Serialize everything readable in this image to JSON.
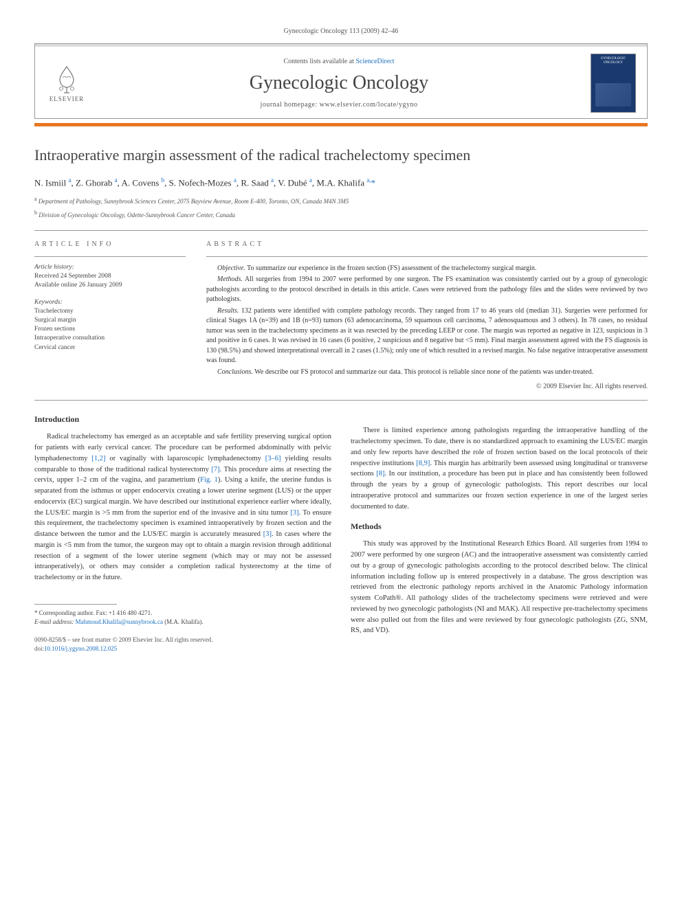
{
  "running_head": "Gynecologic Oncology 113 (2009) 42–46",
  "header": {
    "contents_prefix": "Contents lists available at ",
    "contents_link": "ScienceDirect",
    "journal_title": "Gynecologic Oncology",
    "homepage_label": "journal homepage: ",
    "homepage_url": "www.elsevier.com/locate/ygyno",
    "elsevier": "ELSEVIER",
    "cover_label": "GYNECOLOGIC ONCOLOGY"
  },
  "article": {
    "title": "Intraoperative margin assessment of the radical trachelectomy specimen",
    "authors_html": "N. Ismiil <sup>a</sup>, Z. Ghorab <sup>a</sup>, A. Covens <sup>b</sup>, S. Nofech-Mozes <sup>a</sup>, R. Saad <sup>a</sup>, V. Dubé <sup>a</sup>, M.A. Khalifa <sup>a,</sup><span class='corr'>*</span>",
    "affiliations": [
      "a  Department of Pathology, Sunnybrook Sciences Center, 2075 Bayview Avenue, Room E-400, Toronto, ON, Canada M4N 3M5",
      "b  Division of Gynecologic Oncology, Odette-Sunnybrook Cancer Center, Canada"
    ]
  },
  "info": {
    "article_info_label": "ARTICLE INFO",
    "abstract_label": "ABSTRACT",
    "history_label": "Article history:",
    "history_lines": [
      "Received 24 September 2008",
      "Available online 26 January 2009"
    ],
    "keywords_label": "Keywords:",
    "keywords": [
      "Trachelectomy",
      "Surgical margin",
      "Frozen sections",
      "Intraoperative consultation",
      "Cervical cancer"
    ]
  },
  "abstract": {
    "objective": "Objective. To summarize our experience in the frozen section (FS) assessment of the trachelectomy surgical margin.",
    "methods": "Methods. All surgeries from 1994 to 2007 were performed by one surgeon. The FS examination was consistently carried out by a group of gynecologic pathologists according to the protocol described in details in this article. Cases were retrieved from the pathology files and the slides were reviewed by two pathologists.",
    "results": "Results. 132 patients were identified with complete pathology records. They ranged from 17 to 46 years old (median 31). Surgeries were performed for clinical Stages 1A (n=39) and 1B (n=93) tumors (63 adenocarcinoma, 59 squamous cell carcinoma, 7 adenosquamous and 3 others). In 78 cases, no residual tumor was seen in the trachelectomy specimens as it was resected by the preceding LEEP or cone. The margin was reported as negative in 123, suspicious in 3 and positive in 6 cases. It was revised in 16 cases (6 positive, 2 suspicious and 8 negative but <5 mm). Final margin assessment agreed with the FS diagnosis in 130 (98.5%) and showed interpretational overcall in 2 cases (1.5%); only one of which resulted in a revised margin. No false negative intraoperative assessment was found.",
    "conclusions": "Conclusions. We describe our FS protocol and summarize our data. This protocol is reliable since none of the patients was under-treated.",
    "copyright": "© 2009 Elsevier Inc. All rights reserved."
  },
  "body": {
    "intro_heading": "Introduction",
    "intro_p1": "Radical trachelectomy has emerged as an acceptable and safe fertility preserving surgical option for patients with early cervical cancer. The procedure can be performed abdominally with pelvic lymphadenectomy [1,2] or vaginally with laparoscopic lymphadenectomy [3–6] yielding results comparable to those of the traditional radical hysterectomy [7]. This procedure aims at resecting the cervix, upper 1–2 cm of the vagina, and parametrium (Fig. 1). Using a knife, the uterine fundus is separated from the isthmus or upper endocervix creating a lower uterine segment (LUS) or the upper endocervix (EC) surgical margin. We have described our institutional experience earlier where ideally, the LUS/EC margin is >5 mm from the superior end of the invasive and in situ tumor [3]. To ensure this requirement, the trachelectomy specimen is examined intraoperatively by frozen section and the distance between the tumor and the LUS/EC margin is accurately measured [3]. In cases where the margin is <5 mm from the tumor, the surgeon may opt to obtain a margin revision through additional resection of a segment of the lower uterine segment (which may or may not be assessed intraoperatively), or others may consider a completion radical hysterectomy at the time of trachelectomy or in the future.",
    "col2_p1": "There is limited experience among pathologists regarding the intraoperative handling of the trachelectomy specimen. To date, there is no standardized approach to examining the LUS/EC margin and only few reports have described the role of frozen section based on the local protocols of their respective institutions [8,9]. This margin has arbitrarily been assessed using longitudinal or transverse sections [8]. In our institution, a procedure has been put in place and has consistently been followed through the years by a group of gynecologic pathologists. This report describes our local intraoperative protocol and summarizes our frozen section experience in one of the largest series documented to date.",
    "methods_heading": "Methods",
    "methods_p1": "This study was approved by the Institutional Research Ethics Board. All surgeries from 1994 to 2007 were performed by one surgeon (AC) and the intraoperative assessment was consistently carried out by a group of gynecologic pathologists according to the protocol described below. The clinical information including follow up is entered prospectively in a database. The gross description was retrieved from the electronic pathology reports archived in the Anatomic Pathology information system CoPath®. All pathology slides of the trachelectomy specimens were retrieved and were reviewed by two gynecologic pathologists (NI and MAK). All respective pre-trachelectomy specimens were also pulled out from the files and were reviewed by four gynecologic pathologists (ZG, SNM, RS, and VD)."
  },
  "footnote": {
    "corr": "* Corresponding author. Fax: +1 416 480 4271.",
    "email_label": "E-mail address: ",
    "email": "Mahmoud.Khalifa@sunnybrook.ca",
    "email_suffix": " (M.A. Khalifa)."
  },
  "doi": {
    "line1": "0090-8258/$ – see front matter © 2009 Elsevier Inc. All rights reserved.",
    "line2_prefix": "doi:",
    "line2_link": "10.1016/j.ygyno.2008.12.025"
  },
  "colors": {
    "orange": "#e87722",
    "link": "#1a6fbf",
    "cover": "#1a3a6e"
  }
}
